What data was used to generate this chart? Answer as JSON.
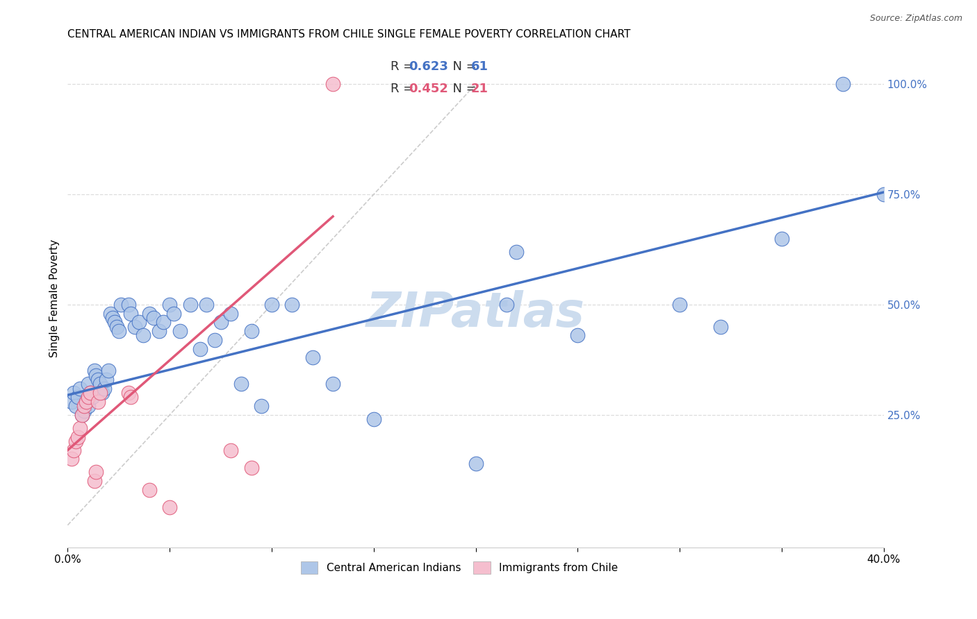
{
  "title": "CENTRAL AMERICAN INDIAN VS IMMIGRANTS FROM CHILE SINGLE FEMALE POVERTY CORRELATION CHART",
  "source": "Source: ZipAtlas.com",
  "ylabel": "Single Female Poverty",
  "ytick_labels": [
    "25.0%",
    "50.0%",
    "75.0%",
    "100.0%"
  ],
  "ytick_values": [
    0.25,
    0.5,
    0.75,
    1.0
  ],
  "legend_label1": "Central American Indians",
  "legend_label2": "Immigrants from Chile",
  "blue_color": "#aec6e8",
  "pink_color": "#f5bece",
  "blue_line_color": "#4472c4",
  "pink_line_color": "#e05878",
  "R_blue": "0.623",
  "N_blue": "61",
  "R_pink": "0.452",
  "N_pink": "21",
  "xlim": [
    0.0,
    0.4
  ],
  "ylim": [
    -0.05,
    1.08
  ],
  "blue_x": [
    0.002,
    0.003,
    0.004,
    0.005,
    0.006,
    0.007,
    0.008,
    0.009,
    0.01,
    0.01,
    0.011,
    0.012,
    0.013,
    0.014,
    0.015,
    0.016,
    0.017,
    0.018,
    0.019,
    0.02,
    0.021,
    0.022,
    0.023,
    0.024,
    0.025,
    0.026,
    0.03,
    0.031,
    0.033,
    0.035,
    0.037,
    0.04,
    0.042,
    0.045,
    0.047,
    0.05,
    0.052,
    0.055,
    0.06,
    0.065,
    0.068,
    0.072,
    0.075,
    0.08,
    0.085,
    0.09,
    0.095,
    0.1,
    0.11,
    0.12,
    0.13,
    0.15,
    0.2,
    0.215,
    0.22,
    0.25,
    0.3,
    0.32,
    0.35,
    0.38,
    0.4
  ],
  "blue_y": [
    0.28,
    0.3,
    0.27,
    0.29,
    0.31,
    0.25,
    0.26,
    0.28,
    0.32,
    0.27,
    0.3,
    0.29,
    0.35,
    0.34,
    0.33,
    0.32,
    0.3,
    0.31,
    0.33,
    0.35,
    0.48,
    0.47,
    0.46,
    0.45,
    0.44,
    0.5,
    0.5,
    0.48,
    0.45,
    0.46,
    0.43,
    0.48,
    0.47,
    0.44,
    0.46,
    0.5,
    0.48,
    0.44,
    0.5,
    0.4,
    0.5,
    0.42,
    0.46,
    0.48,
    0.32,
    0.44,
    0.27,
    0.5,
    0.5,
    0.38,
    0.32,
    0.24,
    0.14,
    0.5,
    0.62,
    0.43,
    0.5,
    0.45,
    0.65,
    1.0,
    0.75
  ],
  "pink_x": [
    0.002,
    0.003,
    0.004,
    0.005,
    0.006,
    0.007,
    0.008,
    0.009,
    0.01,
    0.011,
    0.013,
    0.014,
    0.015,
    0.016,
    0.03,
    0.031,
    0.04,
    0.05,
    0.08,
    0.09,
    0.13
  ],
  "pink_y": [
    0.15,
    0.17,
    0.19,
    0.2,
    0.22,
    0.25,
    0.27,
    0.28,
    0.29,
    0.3,
    0.1,
    0.12,
    0.28,
    0.3,
    0.3,
    0.29,
    0.08,
    0.04,
    0.17,
    0.13,
    1.0
  ],
  "watermark": "ZIPatlas",
  "watermark_color": "#ccdcee",
  "title_fontsize": 11,
  "tick_label_fontsize": 11
}
